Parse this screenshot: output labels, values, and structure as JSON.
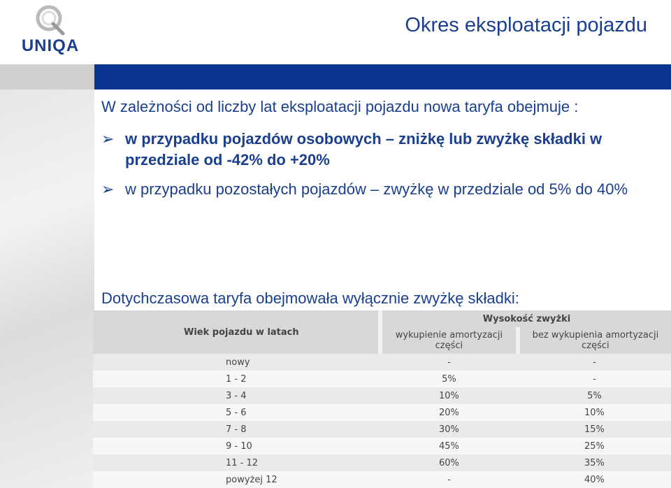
{
  "header": {
    "logo_text": "UNIQA",
    "title": "Okres eksploatacji pojazdu"
  },
  "content": {
    "intro": "W zależności od liczby lat eksploatacji pojazdu nowa taryfa obejmuje :",
    "bullets": [
      "w przypadku pojazdów osobowych – zniżkę lub zwyżkę składki w przedziale od -42% do +20%",
      "w przypadku pozostałych pojazdów – zwyżkę w przedziale od 5% do 40%"
    ],
    "outro": "Dotychczasowa taryfa obejmowała wyłącznie zwyżkę składki:"
  },
  "table": {
    "col_age": "Wiek pojazdu w latach",
    "group_header": "Wysokość zwyżki",
    "col_with": "wykupienie amortyzacji części",
    "col_without": "bez wykupienia amortyzacji części",
    "rows": [
      {
        "age": "nowy",
        "with": "-",
        "without": "-"
      },
      {
        "age": "1 - 2",
        "with": "5%",
        "without": "-"
      },
      {
        "age": "3 - 4",
        "with": "10%",
        "without": "5%"
      },
      {
        "age": "5 - 6",
        "with": "20%",
        "without": "10%"
      },
      {
        "age": "7 - 8",
        "with": "30%",
        "without": "15%"
      },
      {
        "age": "9 - 10",
        "with": "45%",
        "without": "25%"
      },
      {
        "age": "11 - 12",
        "with": "60%",
        "without": "35%"
      },
      {
        "age": "powyżej 12",
        "with": "-",
        "without": "40%"
      }
    ]
  },
  "colors": {
    "brand_blue": "#1a3f8f",
    "band_blue": "#0b3590"
  }
}
